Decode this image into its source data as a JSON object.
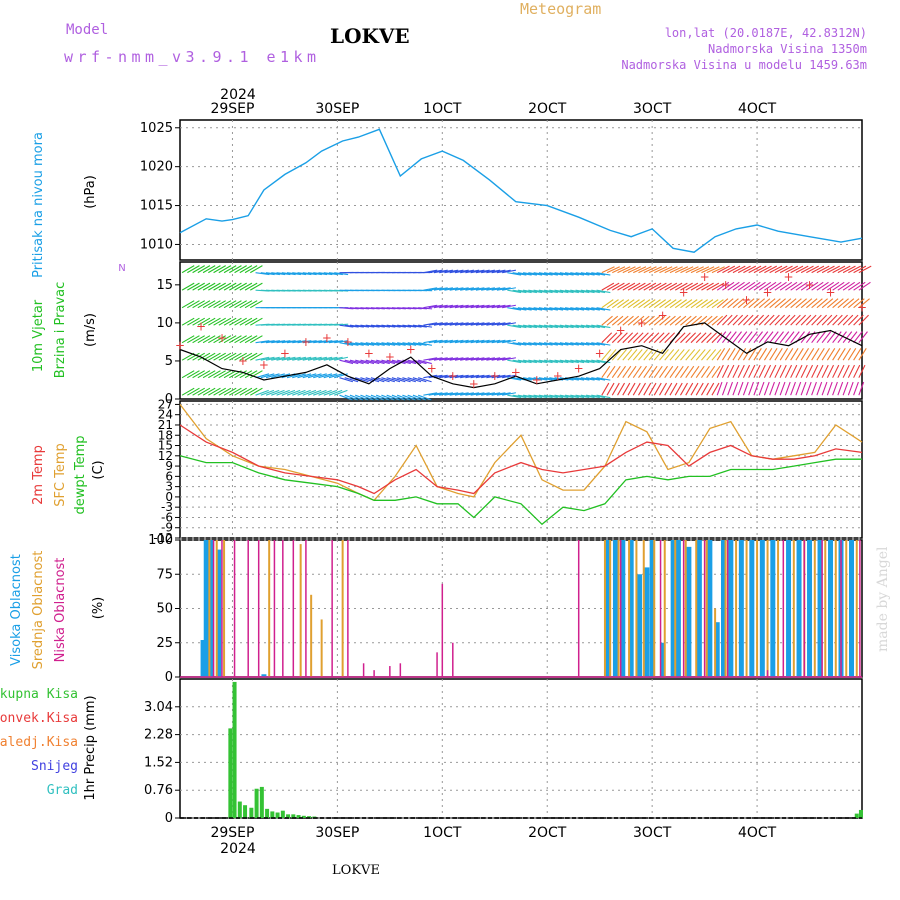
{
  "header": {
    "model_label": "Model",
    "model_value": "wrf-nmm_v3.9.1 e1km",
    "title": "LOKVE",
    "meteogram_label": "Meteogram",
    "coords": "lon,lat (20.0187E, 42.8312N)",
    "altitude": "Nadmorska Visina 1350m",
    "model_altitude": "Nadmorska Visina u modelu 1459.63m",
    "watermark": "made by Angel",
    "footer_station": "LOKVE"
  },
  "colors": {
    "pressure": "#1a9fe6",
    "temp2m": "#e83a3a",
    "sfc_temp": "#e0a030",
    "dewpt": "#22c022",
    "high_cloud": "#1a9fe6",
    "mid_cloud": "#e0a030",
    "low_cloud": "#d0208e",
    "total_precip": "#34c234",
    "conv_precip": "#e83a3a",
    "frozen_precip": "#f08030",
    "snow": "#4040e0",
    "hail": "#30c0c0",
    "wind_speed": "#000000",
    "wind_gust": "#e83a3a"
  },
  "top_axis": {
    "year": "2024",
    "ticks": [
      "29SEP",
      "30SEP",
      "1OCT",
      "2OCT",
      "3OCT",
      "4OCT"
    ]
  },
  "bottom_axis": {
    "year": "2024",
    "ticks": [
      "29SEP",
      "30SEP",
      "1OCT",
      "2OCT",
      "3OCT",
      "4OCT"
    ]
  },
  "chart_data": [
    {
      "type": "line",
      "panel": "pressure",
      "ylabel_title": "Pritisak na nivou mora",
      "unit": "(hPa)",
      "yticks": [
        "1025",
        "1020",
        "1015",
        "1010"
      ],
      "ylim": [
        1008,
        1026
      ],
      "x_days": [
        28.5,
        28.75,
        28.9,
        29.0,
        29.15,
        29.3,
        29.5,
        29.7,
        29.85,
        30.05,
        30.2,
        30.4,
        30.6,
        30.8,
        31.0,
        31.2,
        31.45,
        31.7,
        32.0,
        32.3,
        32.6,
        32.8,
        33.0,
        33.2,
        33.4,
        33.6,
        33.8,
        34.0,
        34.2,
        34.5,
        34.8,
        35.0
      ],
      "y": [
        1011.5,
        1013.3,
        1013.0,
        1013.2,
        1013.7,
        1017.0,
        1019.0,
        1020.5,
        1022.0,
        1023.3,
        1023.8,
        1024.8,
        1018.8,
        1021.0,
        1022.0,
        1020.8,
        1018.3,
        1015.5,
        1015.0,
        1013.5,
        1011.8,
        1011.0,
        1012.0,
        1009.5,
        1009.0,
        1011.0,
        1012.0,
        1012.5,
        1011.7,
        1011.0,
        1010.3,
        1010.8
      ],
      "series_name": ""
    },
    {
      "type": "line",
      "panel": "wind",
      "ylabel_title": "10m Vjetar",
      "ylabel_sub": "Brzina i Pravac",
      "unit": "(m/s)",
      "compass": "N",
      "yticks": [
        "15",
        "10",
        "5",
        "0"
      ],
      "ylim": [
        0,
        18
      ],
      "x_days": [
        28.5,
        28.7,
        28.9,
        29.1,
        29.3,
        29.5,
        29.7,
        29.9,
        30.1,
        30.3,
        30.5,
        30.7,
        30.9,
        31.1,
        31.3,
        31.5,
        31.7,
        31.9,
        32.1,
        32.3,
        32.5,
        32.7,
        32.9,
        33.1,
        33.3,
        33.5,
        33.7,
        33.9,
        34.1,
        34.3,
        34.5,
        34.7,
        35.0
      ],
      "speed": [
        6.5,
        5.5,
        4.0,
        3.5,
        2.5,
        3.0,
        3.5,
        4.5,
        3.0,
        2.0,
        4.0,
        5.5,
        3.0,
        2.0,
        1.5,
        2.0,
        3.0,
        2.0,
        2.5,
        3.0,
        4.0,
        6.5,
        7.0,
        6.0,
        9.5,
        10.0,
        8.0,
        6.0,
        7.5,
        7.0,
        8.5,
        9.0,
        7.0
      ],
      "gust": [
        7.0,
        9.5,
        8.0,
        5.0,
        4.5,
        6.0,
        7.5,
        8.0,
        7.5,
        6.0,
        5.5,
        6.5,
        4.0,
        3.0,
        2.0,
        3.0,
        3.5,
        2.5,
        3.0,
        4.0,
        6.0,
        9.0,
        10.0,
        11.0,
        14.0,
        16.0,
        15.0,
        13.0,
        14.0,
        16.0,
        15.0,
        14.0,
        12.0
      ]
    },
    {
      "type": "line",
      "panel": "temperature",
      "ylabel_a": "2m Temp",
      "ylabel_b": "SFC Temp",
      "ylabel_c": "dewpt Temp",
      "unit": "(C)",
      "yticks": [
        "27",
        "24",
        "21",
        "18",
        "15",
        "12",
        "9",
        "6",
        "3",
        "0",
        "-3",
        "-6",
        "-9",
        "-12"
      ],
      "ylim": [
        -12,
        28
      ],
      "x_days": [
        28.5,
        28.75,
        29.0,
        29.25,
        29.5,
        29.75,
        30.0,
        30.2,
        30.35,
        30.55,
        30.75,
        30.95,
        31.15,
        31.3,
        31.5,
        31.75,
        31.95,
        32.15,
        32.35,
        32.55,
        32.75,
        32.95,
        33.15,
        33.35,
        33.55,
        33.75,
        33.95,
        34.15,
        34.35,
        34.55,
        34.75,
        35.0
      ],
      "temp2m": [
        21,
        16,
        13,
        9,
        7,
        6,
        5,
        3,
        1,
        5,
        8,
        3,
        2,
        1,
        7,
        10,
        8,
        7,
        8,
        9,
        13,
        16,
        15,
        9,
        13,
        15,
        12,
        11,
        11,
        12,
        14,
        13
      ],
      "sfc": [
        27,
        17,
        12,
        9,
        8,
        6,
        4,
        1,
        -1,
        6,
        15,
        3,
        1,
        0,
        10,
        18,
        5,
        2,
        2,
        9,
        22,
        19,
        8,
        10,
        20,
        22,
        12,
        11,
        12,
        13,
        21,
        16
      ],
      "dewpt": [
        12,
        10,
        10,
        7,
        5,
        4,
        3,
        1,
        -1,
        -1,
        0,
        -2,
        -2,
        -6,
        0,
        -2,
        -8,
        -3,
        -4,
        -2,
        5,
        6,
        5,
        6,
        6,
        8,
        8,
        8,
        9,
        10,
        11,
        11
      ]
    },
    {
      "type": "bar",
      "panel": "clouds",
      "ylabel_a": "Visoka Oblacnost",
      "ylabel_b": "Srednja Oblacnost",
      "ylabel_c": "Niska Oblacnost",
      "unit": "(%)",
      "yticks": [
        "100",
        "75",
        "50",
        "25",
        "0"
      ],
      "ylim": [
        0,
        100
      ],
      "high": [
        [
          28.72,
          27
        ],
        [
          28.75,
          100
        ],
        [
          28.8,
          100
        ],
        [
          28.87,
          93
        ],
        [
          29.3,
          2
        ],
        [
          32.58,
          100
        ],
        [
          32.65,
          100
        ],
        [
          32.72,
          100
        ],
        [
          32.8,
          100
        ],
        [
          32.88,
          75
        ],
        [
          32.95,
          80
        ],
        [
          33.0,
          100
        ],
        [
          33.1,
          25
        ],
        [
          33.2,
          100
        ],
        [
          33.25,
          100
        ],
        [
          33.35,
          95
        ],
        [
          33.45,
          100
        ],
        [
          33.55,
          100
        ],
        [
          33.62,
          40
        ],
        [
          33.68,
          100
        ],
        [
          33.75,
          100
        ],
        [
          33.85,
          100
        ],
        [
          33.95,
          100
        ],
        [
          34.05,
          100
        ],
        [
          34.15,
          100
        ],
        [
          34.3,
          100
        ],
        [
          34.4,
          100
        ],
        [
          34.5,
          100
        ],
        [
          34.6,
          100
        ],
        [
          34.7,
          100
        ],
        [
          34.8,
          100
        ],
        [
          34.9,
          100
        ]
      ],
      "mid": [
        [
          28.78,
          100
        ],
        [
          28.85,
          100
        ],
        [
          28.92,
          100
        ],
        [
          29.35,
          100
        ],
        [
          29.65,
          97
        ],
        [
          29.75,
          60
        ],
        [
          29.85,
          42
        ],
        [
          30.05,
          100
        ],
        [
          32.55,
          100
        ],
        [
          32.6,
          100
        ],
        [
          32.68,
          100
        ],
        [
          32.78,
          100
        ],
        [
          32.85,
          100
        ],
        [
          32.92,
          100
        ],
        [
          33.02,
          100
        ],
        [
          33.12,
          100
        ],
        [
          33.22,
          100
        ],
        [
          33.32,
          100
        ],
        [
          33.42,
          100
        ],
        [
          33.52,
          100
        ],
        [
          33.6,
          50
        ],
        [
          33.7,
          100
        ],
        [
          33.8,
          100
        ],
        [
          33.9,
          100
        ],
        [
          34.0,
          100
        ],
        [
          34.1,
          100
        ],
        [
          34.2,
          100
        ],
        [
          34.35,
          100
        ],
        [
          34.45,
          100
        ],
        [
          34.55,
          100
        ],
        [
          34.65,
          100
        ],
        [
          34.75,
          100
        ],
        [
          34.85,
          100
        ],
        [
          34.95,
          100
        ]
      ],
      "low": [
        [
          28.82,
          100
        ],
        [
          28.9,
          100
        ],
        [
          29.02,
          100
        ],
        [
          29.15,
          100
        ],
        [
          29.25,
          100
        ],
        [
          29.4,
          100
        ],
        [
          29.48,
          100
        ],
        [
          29.58,
          100
        ],
        [
          29.7,
          100
        ],
        [
          29.95,
          100
        ],
        [
          30.1,
          100
        ],
        [
          30.25,
          10
        ],
        [
          30.35,
          5
        ],
        [
          30.5,
          8
        ],
        [
          30.6,
          10
        ],
        [
          30.95,
          18
        ],
        [
          31.0,
          68
        ],
        [
          31.1,
          25
        ],
        [
          32.3,
          100
        ],
        [
          32.7,
          100
        ],
        [
          33.08,
          100
        ],
        [
          33.3,
          100
        ],
        [
          33.5,
          100
        ],
        [
          33.72,
          100
        ],
        [
          34.1,
          5
        ],
        [
          34.25,
          100
        ],
        [
          34.45,
          100
        ],
        [
          34.62,
          100
        ],
        [
          34.8,
          100
        ],
        [
          34.98,
          100
        ]
      ]
    },
    {
      "type": "bar",
      "panel": "precipitation",
      "legend": [
        "Ukupna Kisa",
        "Konvek.Kisa",
        "Zaledj.Kisa",
        "Snijeg",
        "Grad"
      ],
      "unit": "1hr Precip (mm)",
      "yticks": [
        "3.04",
        "2.28",
        "1.52",
        "0.76",
        "0"
      ],
      "ylim": [
        0,
        3.8
      ],
      "total": [
        [
          28.98,
          2.45
        ],
        [
          29.02,
          3.72
        ],
        [
          29.07,
          0.45
        ],
        [
          29.12,
          0.35
        ],
        [
          29.18,
          0.28
        ],
        [
          29.23,
          0.8
        ],
        [
          29.28,
          0.85
        ],
        [
          29.33,
          0.25
        ],
        [
          29.38,
          0.18
        ],
        [
          29.43,
          0.15
        ],
        [
          29.48,
          0.2
        ],
        [
          29.53,
          0.1
        ],
        [
          29.58,
          0.1
        ],
        [
          29.63,
          0.08
        ],
        [
          29.68,
          0.06
        ],
        [
          29.73,
          0.05
        ],
        [
          29.78,
          0.04
        ],
        [
          34.95,
          0.12
        ],
        [
          34.99,
          0.22
        ]
      ]
    }
  ]
}
